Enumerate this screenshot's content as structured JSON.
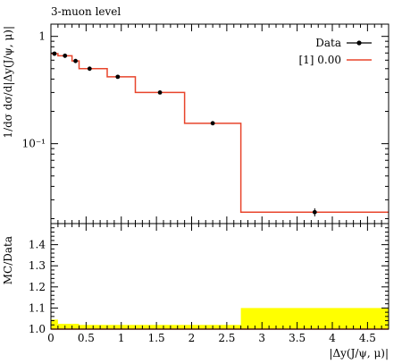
{
  "chart_data": [
    {
      "type": "line",
      "title": "3-muon level",
      "xlabel": "|Δy(J/ψ, μ)|",
      "ylabel": "1/dσ dσ/d|Δy(J/ψ, μ)|",
      "yscale": "log",
      "xlim": [
        0,
        4.8
      ],
      "ylim": [
        0.018,
        1.3
      ],
      "legend_position": "top-right",
      "xtick_labels": [
        "0",
        "0.5",
        "1",
        "1.5",
        "2",
        "2.5",
        "3",
        "3.5",
        "4",
        "4.5"
      ],
      "ytick_labels": [
        {
          "value": 1,
          "label": "1"
        },
        {
          "value": 0.1,
          "label": "10⁻¹"
        }
      ],
      "bin_edges": [
        0,
        0.1,
        0.3,
        0.4,
        0.7,
        0.8,
        1.2,
        1.9,
        2.7,
        4.8
      ],
      "series": [
        {
          "name": "Data",
          "kind": "points",
          "color": "#000000",
          "x": [
            0.05,
            0.2,
            0.35,
            0.55,
            0.95,
            1.55,
            2.3,
            3.75
          ],
          "y": [
            0.69,
            0.66,
            0.59,
            0.5,
            0.42,
            0.3,
            0.155,
            0.023
          ],
          "yerr": [
            0.03,
            0.03,
            0.025,
            0.02,
            0.015,
            0.01,
            0.006,
            0.002
          ]
        },
        {
          "name": "[1] 0.00",
          "kind": "histogram",
          "color": "#e8452c",
          "values": [
            0.69,
            0.66,
            0.59,
            0.5,
            0.5,
            0.42,
            0.3,
            0.155,
            0.023
          ]
        }
      ]
    },
    {
      "type": "area",
      "xlabel": "|Δy(J/ψ, μ)|",
      "ylabel": "MC/Data",
      "xlim": [
        0,
        4.8
      ],
      "ylim": [
        1.0,
        1.5
      ],
      "xtick_labels": [
        "0",
        "0.5",
        "1",
        "1.5",
        "2",
        "2.5",
        "3",
        "3.5",
        "4",
        "4.5"
      ],
      "ytick_labels": [
        "1.0",
        "1.1",
        "1.2",
        "1.3",
        "1.4"
      ],
      "band_color": "#ffff00",
      "bin_edges": [
        0,
        0.1,
        0.3,
        0.4,
        0.7,
        0.8,
        1.2,
        1.9,
        2.7,
        4.8
      ],
      "band_upper": [
        1.045,
        1.025,
        1.025,
        1.02,
        1.02,
        1.02,
        1.02,
        1.02,
        1.1
      ],
      "ratio": [
        1,
        1,
        1,
        1,
        1,
        1,
        1,
        1,
        1
      ]
    }
  ]
}
